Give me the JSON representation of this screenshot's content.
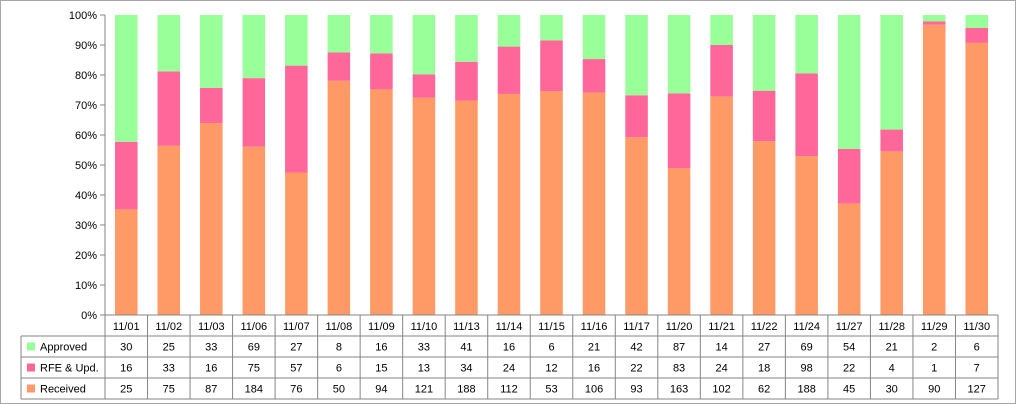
{
  "chart_data": {
    "type": "bar",
    "stacked": "percent",
    "categories": [
      "11/01",
      "11/02",
      "11/03",
      "11/06",
      "11/07",
      "11/08",
      "11/09",
      "11/10",
      "11/13",
      "11/14",
      "11/15",
      "11/16",
      "11/17",
      "11/20",
      "11/21",
      "11/22",
      "11/24",
      "11/27",
      "11/28",
      "11/29",
      "11/30"
    ],
    "series": [
      {
        "name": "Received",
        "color": "#FF9966",
        "values": [
          25,
          75,
          87,
          184,
          76,
          50,
          94,
          121,
          188,
          112,
          53,
          106,
          93,
          163,
          102,
          62,
          188,
          45,
          30,
          90,
          127
        ]
      },
      {
        "name": "RFE & Upd.",
        "color": "#FF6699",
        "values": [
          16,
          33,
          16,
          75,
          57,
          6,
          15,
          13,
          34,
          24,
          12,
          16,
          22,
          83,
          24,
          18,
          98,
          22,
          4,
          1,
          7
        ]
      },
      {
        "name": "Approved",
        "color": "#99FF99",
        "values": [
          30,
          25,
          33,
          69,
          27,
          8,
          16,
          33,
          41,
          16,
          6,
          21,
          42,
          87,
          14,
          27,
          69,
          54,
          21,
          2,
          6
        ]
      }
    ],
    "table_row_order": [
      "Approved",
      "RFE & Upd.",
      "Received"
    ],
    "y_ticks": [
      "0%",
      "10%",
      "20%",
      "30%",
      "40%",
      "50%",
      "60%",
      "70%",
      "80%",
      "90%",
      "100%"
    ],
    "ylim": [
      0,
      100
    ],
    "grid": false,
    "legend_position": "data-table"
  }
}
